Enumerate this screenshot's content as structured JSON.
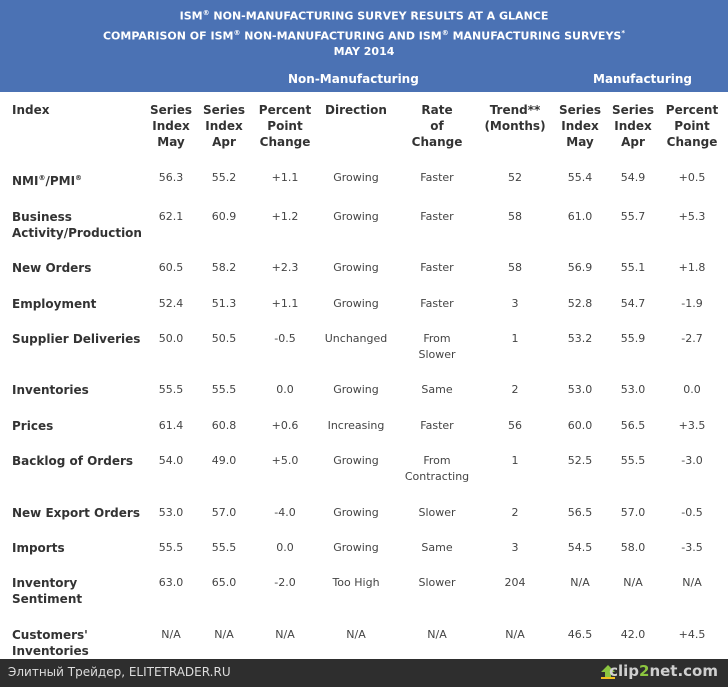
{
  "banner": {
    "line1": "ISM® NON-MANUFACTURING SURVEY RESULTS AT A GLANCE",
    "line2": "COMPARISON OF ISM® NON-MANUFACTURING AND ISM® MANUFACTURING SURVEYS*",
    "line3": "MAY 2014",
    "group_nonmfg": "Non-Manufacturing",
    "group_mfg": "Manufacturing"
  },
  "table": {
    "columns": [
      "Index",
      "Series\nIndex\nMay",
      "Series\nIndex\nApr",
      "Percent\nPoint\nChange",
      "Direction",
      "Rate\nof\nChange",
      "Trend**\n(Months)",
      "Series\nIndex\nMay",
      "Series\nIndex\nApr",
      "Percent\nPoint\nChange"
    ],
    "rows": [
      {
        "index": "NMI®/PMI®",
        "cells": [
          "56.3",
          "55.2",
          "+1.1",
          "Growing",
          "Faster",
          "52",
          "55.4",
          "54.9",
          "+0.5"
        ]
      },
      {
        "index": "Business\nActivity/Production",
        "cells": [
          "62.1",
          "60.9",
          "+1.2",
          "Growing",
          "Faster",
          "58",
          "61.0",
          "55.7",
          "+5.3"
        ]
      },
      {
        "index": "New Orders",
        "cells": [
          "60.5",
          "58.2",
          "+2.3",
          "Growing",
          "Faster",
          "58",
          "56.9",
          "55.1",
          "+1.8"
        ]
      },
      {
        "index": "Employment",
        "cells": [
          "52.4",
          "51.3",
          "+1.1",
          "Growing",
          "Faster",
          "3",
          "52.8",
          "54.7",
          "-1.9"
        ]
      },
      {
        "index": "Supplier Deliveries",
        "cells": [
          "50.0",
          "50.5",
          "-0.5",
          "Unchanged",
          "From\nSlower",
          "1",
          "53.2",
          "55.9",
          "-2.7"
        ]
      },
      {
        "index": "Inventories",
        "cells": [
          "55.5",
          "55.5",
          "0.0",
          "Growing",
          "Same",
          "2",
          "53.0",
          "53.0",
          "0.0"
        ]
      },
      {
        "index": "Prices",
        "cells": [
          "61.4",
          "60.8",
          "+0.6",
          "Increasing",
          "Faster",
          "56",
          "60.0",
          "56.5",
          "+3.5"
        ]
      },
      {
        "index": "Backlog of Orders",
        "cells": [
          "54.0",
          "49.0",
          "+5.0",
          "Growing",
          "From\nContracting",
          "1",
          "52.5",
          "55.5",
          "-3.0"
        ]
      },
      {
        "index": "New Export Orders",
        "cells": [
          "53.0",
          "57.0",
          "-4.0",
          "Growing",
          "Slower",
          "2",
          "56.5",
          "57.0",
          "-0.5"
        ]
      },
      {
        "index": "Imports",
        "cells": [
          "55.5",
          "55.5",
          "0.0",
          "Growing",
          "Same",
          "3",
          "54.5",
          "58.0",
          "-3.5"
        ]
      },
      {
        "index": "Inventory\nSentiment",
        "cells": [
          "63.0",
          "65.0",
          "-2.0",
          "Too High",
          "Slower",
          "204",
          "N/A",
          "N/A",
          "N/A"
        ]
      },
      {
        "index": "Customers'\nInventories",
        "cells": [
          "N/A",
          "N/A",
          "N/A",
          "N/A",
          "N/A",
          "N/A",
          "46.5",
          "42.0",
          "+4.5"
        ]
      }
    ]
  },
  "footer": {
    "site_label": "Элитный Трейдер, ELITETRADER.RU",
    "brand_prefix": "clip",
    "brand_two": "2",
    "brand_suffix": "net.com"
  }
}
